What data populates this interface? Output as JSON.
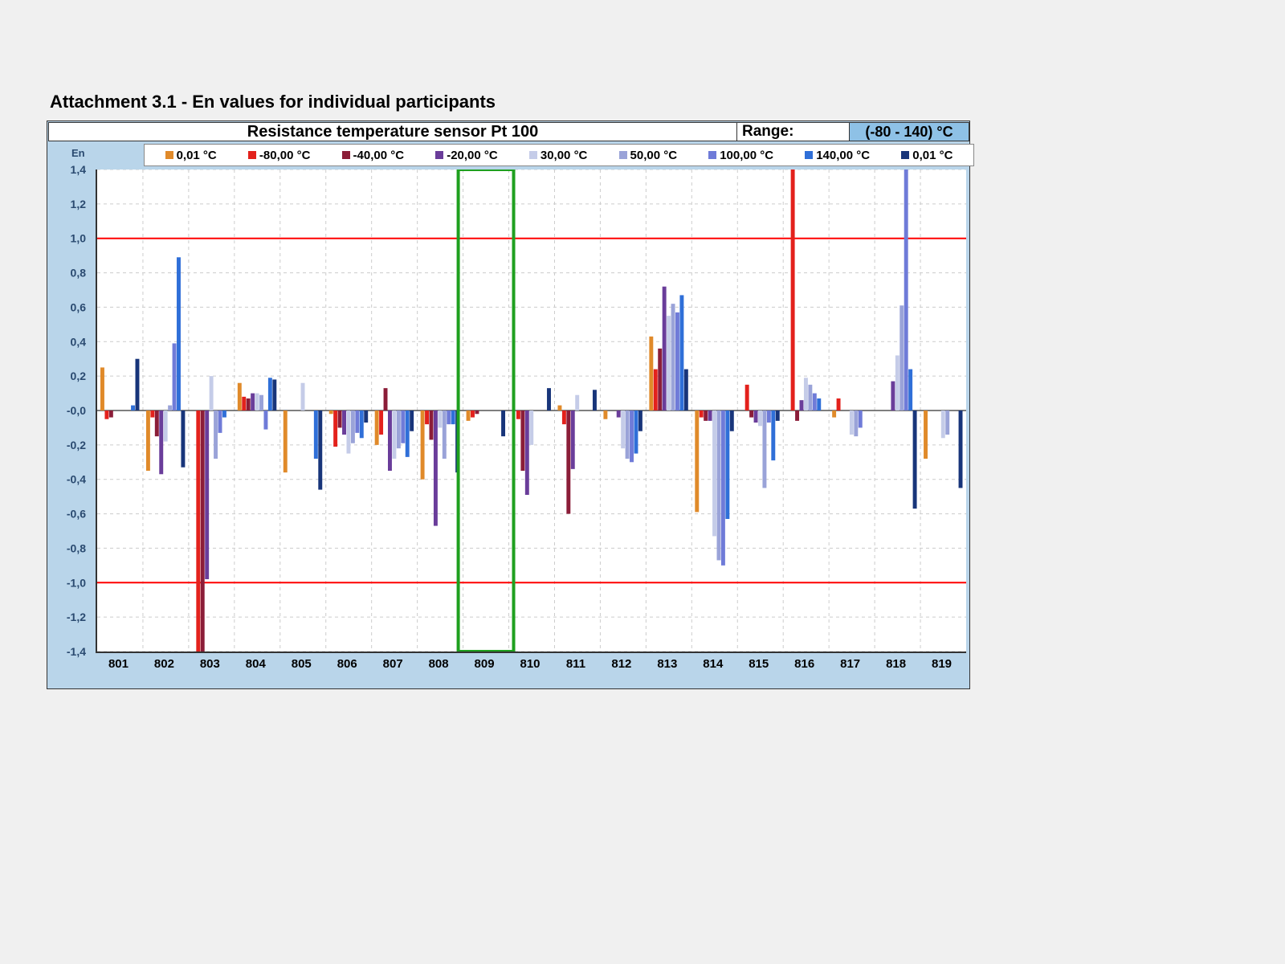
{
  "title": "Attachment 3.1 - En values for individual participants",
  "chart": {
    "type": "grouped-bar",
    "title": "Resistance temperature sensor Pt 100",
    "range_label": "Range:",
    "range_value": "(-80 - 140) °C",
    "y_axis_label": "En",
    "ylim": [
      -1.4,
      1.4
    ],
    "ytick_step": 0.2,
    "thresholds": [
      1.0,
      -1.0
    ],
    "threshold_color": "#ff0000",
    "grid_color": "#cccccc",
    "background_color": "#ffffff",
    "outer_background": "#b9d5ea",
    "highlight_participant": "809",
    "highlight_color": "#1fa01f",
    "participants": [
      "801",
      "802",
      "803",
      "804",
      "805",
      "806",
      "807",
      "808",
      "809",
      "810",
      "811",
      "812",
      "813",
      "814",
      "815",
      "816",
      "817",
      "818",
      "819"
    ],
    "series": [
      {
        "label": "0,01 °C",
        "color": "#e08a2a",
        "values": [
          0.25,
          -0.35,
          0.0,
          0.16,
          -0.36,
          -0.02,
          -0.2,
          -0.4,
          -0.06,
          0.0,
          0.03,
          -0.05,
          0.43,
          -0.59,
          0.0,
          0.0,
          -0.04,
          0.0,
          -0.28
        ]
      },
      {
        "label": "-80,00 °C",
        "color": "#e3211c",
        "values": [
          -0.05,
          -0.04,
          -1.9,
          0.08,
          0.0,
          -0.21,
          -0.14,
          -0.08,
          -0.04,
          -0.05,
          -0.08,
          0.0,
          0.24,
          -0.04,
          0.15,
          1.8,
          0.07,
          0.0,
          0.0
        ]
      },
      {
        "label": "-40,00 °C",
        "color": "#8b1d38",
        "values": [
          -0.04,
          -0.15,
          -1.7,
          0.07,
          0.0,
          -0.1,
          0.13,
          -0.17,
          -0.02,
          -0.35,
          -0.6,
          0.0,
          0.36,
          -0.06,
          -0.04,
          -0.06,
          0.0,
          0.0,
          0.0
        ]
      },
      {
        "label": "-20,00 °C",
        "color": "#6a3d9a",
        "values": [
          0.0,
          -0.37,
          -0.98,
          0.1,
          0.0,
          -0.14,
          -0.35,
          -0.67,
          0.0,
          -0.49,
          -0.34,
          -0.04,
          0.72,
          -0.06,
          -0.07,
          0.06,
          0.0,
          0.17,
          0.0
        ]
      },
      {
        "label": "30,00 °C",
        "color": "#c5cce8",
        "values": [
          0.0,
          -0.18,
          0.2,
          0.1,
          0.16,
          -0.25,
          -0.28,
          -0.1,
          0.0,
          -0.2,
          0.09,
          -0.22,
          0.55,
          -0.73,
          -0.09,
          0.19,
          -0.14,
          0.32,
          -0.16
        ]
      },
      {
        "label": "50,00 °C",
        "color": "#9aa3d8",
        "values": [
          0.0,
          0.03,
          -0.28,
          0.09,
          0.0,
          -0.19,
          -0.22,
          -0.28,
          0.0,
          0.0,
          0.0,
          -0.28,
          0.62,
          -0.87,
          -0.45,
          0.15,
          -0.15,
          0.61,
          -0.14
        ]
      },
      {
        "label": "100,00 °C",
        "color": "#6f7bd8",
        "values": [
          0.0,
          0.39,
          -0.13,
          -0.11,
          0.0,
          -0.13,
          -0.19,
          -0.08,
          0.0,
          0.0,
          0.0,
          -0.3,
          0.57,
          -0.9,
          -0.07,
          0.1,
          -0.1,
          1.8,
          0.0
        ]
      },
      {
        "label": "140,00 °C",
        "color": "#2f6fd8",
        "values": [
          0.03,
          0.89,
          -0.04,
          0.19,
          -0.28,
          -0.16,
          -0.27,
          -0.08,
          0.0,
          0.0,
          0.0,
          -0.25,
          0.67,
          -0.63,
          -0.29,
          0.07,
          0.0,
          0.24,
          0.0
        ]
      },
      {
        "label": "0,01 °C",
        "color": "#18357a",
        "values": [
          0.3,
          -0.33,
          0.0,
          0.18,
          -0.46,
          -0.07,
          -0.12,
          -0.36,
          -0.15,
          0.13,
          0.12,
          -0.12,
          0.24,
          -0.12,
          -0.06,
          0.0,
          0.0,
          -0.57,
          -0.45
        ]
      }
    ]
  }
}
